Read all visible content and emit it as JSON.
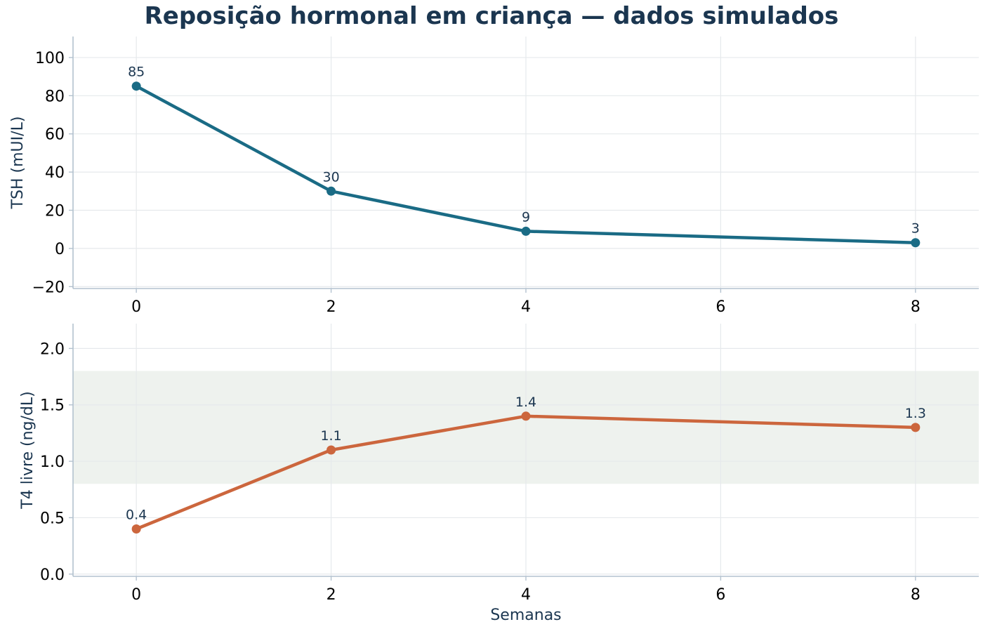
{
  "chart_data": [
    {
      "type": "line",
      "title": "Reposição hormonal em criança — dados simulados",
      "xlabel": "",
      "ylabel": "TSH (mUI/L)",
      "x": [
        0,
        2,
        4,
        8
      ],
      "series": [
        {
          "values": [
            85,
            30,
            9,
            3
          ],
          "data_labels": [
            "85",
            "30",
            "9",
            "3"
          ],
          "color": "#1a6b85"
        }
      ],
      "xlim": [
        -0.65,
        8.65
      ],
      "ylim": [
        -21,
        111
      ],
      "xticks": [
        0,
        2,
        4,
        6,
        8
      ],
      "xtick_labels": [
        "0",
        "2",
        "4",
        "6",
        "8"
      ],
      "yticks": [
        -20,
        0,
        20,
        40,
        60,
        80,
        100
      ],
      "ytick_labels": [
        "−20",
        "0",
        "20",
        "40",
        "60",
        "80",
        "100"
      ],
      "grid": true
    },
    {
      "type": "line",
      "xlabel": "Semanas",
      "ylabel": "T4 livre (ng/dL)",
      "x": [
        0,
        2,
        4,
        8
      ],
      "series": [
        {
          "values": [
            0.4,
            1.1,
            1.4,
            1.3
          ],
          "data_labels": [
            "0.4",
            "1.1",
            "1.4",
            "1.3"
          ],
          "color": "#cc663d"
        }
      ],
      "reference_band": {
        "y_from": 0.8,
        "y_to": 1.8,
        "color": "#eef2ee"
      },
      "xlim": [
        -0.65,
        8.65
      ],
      "ylim": [
        -0.02,
        2.22
      ],
      "xticks": [
        0,
        2,
        4,
        6,
        8
      ],
      "xtick_labels": [
        "0",
        "2",
        "4",
        "6",
        "8"
      ],
      "yticks": [
        0.0,
        0.5,
        1.0,
        1.5,
        2.0
      ],
      "ytick_labels": [
        "0.0",
        "0.5",
        "1.0",
        "1.5",
        "2.0"
      ],
      "grid": true
    }
  ]
}
